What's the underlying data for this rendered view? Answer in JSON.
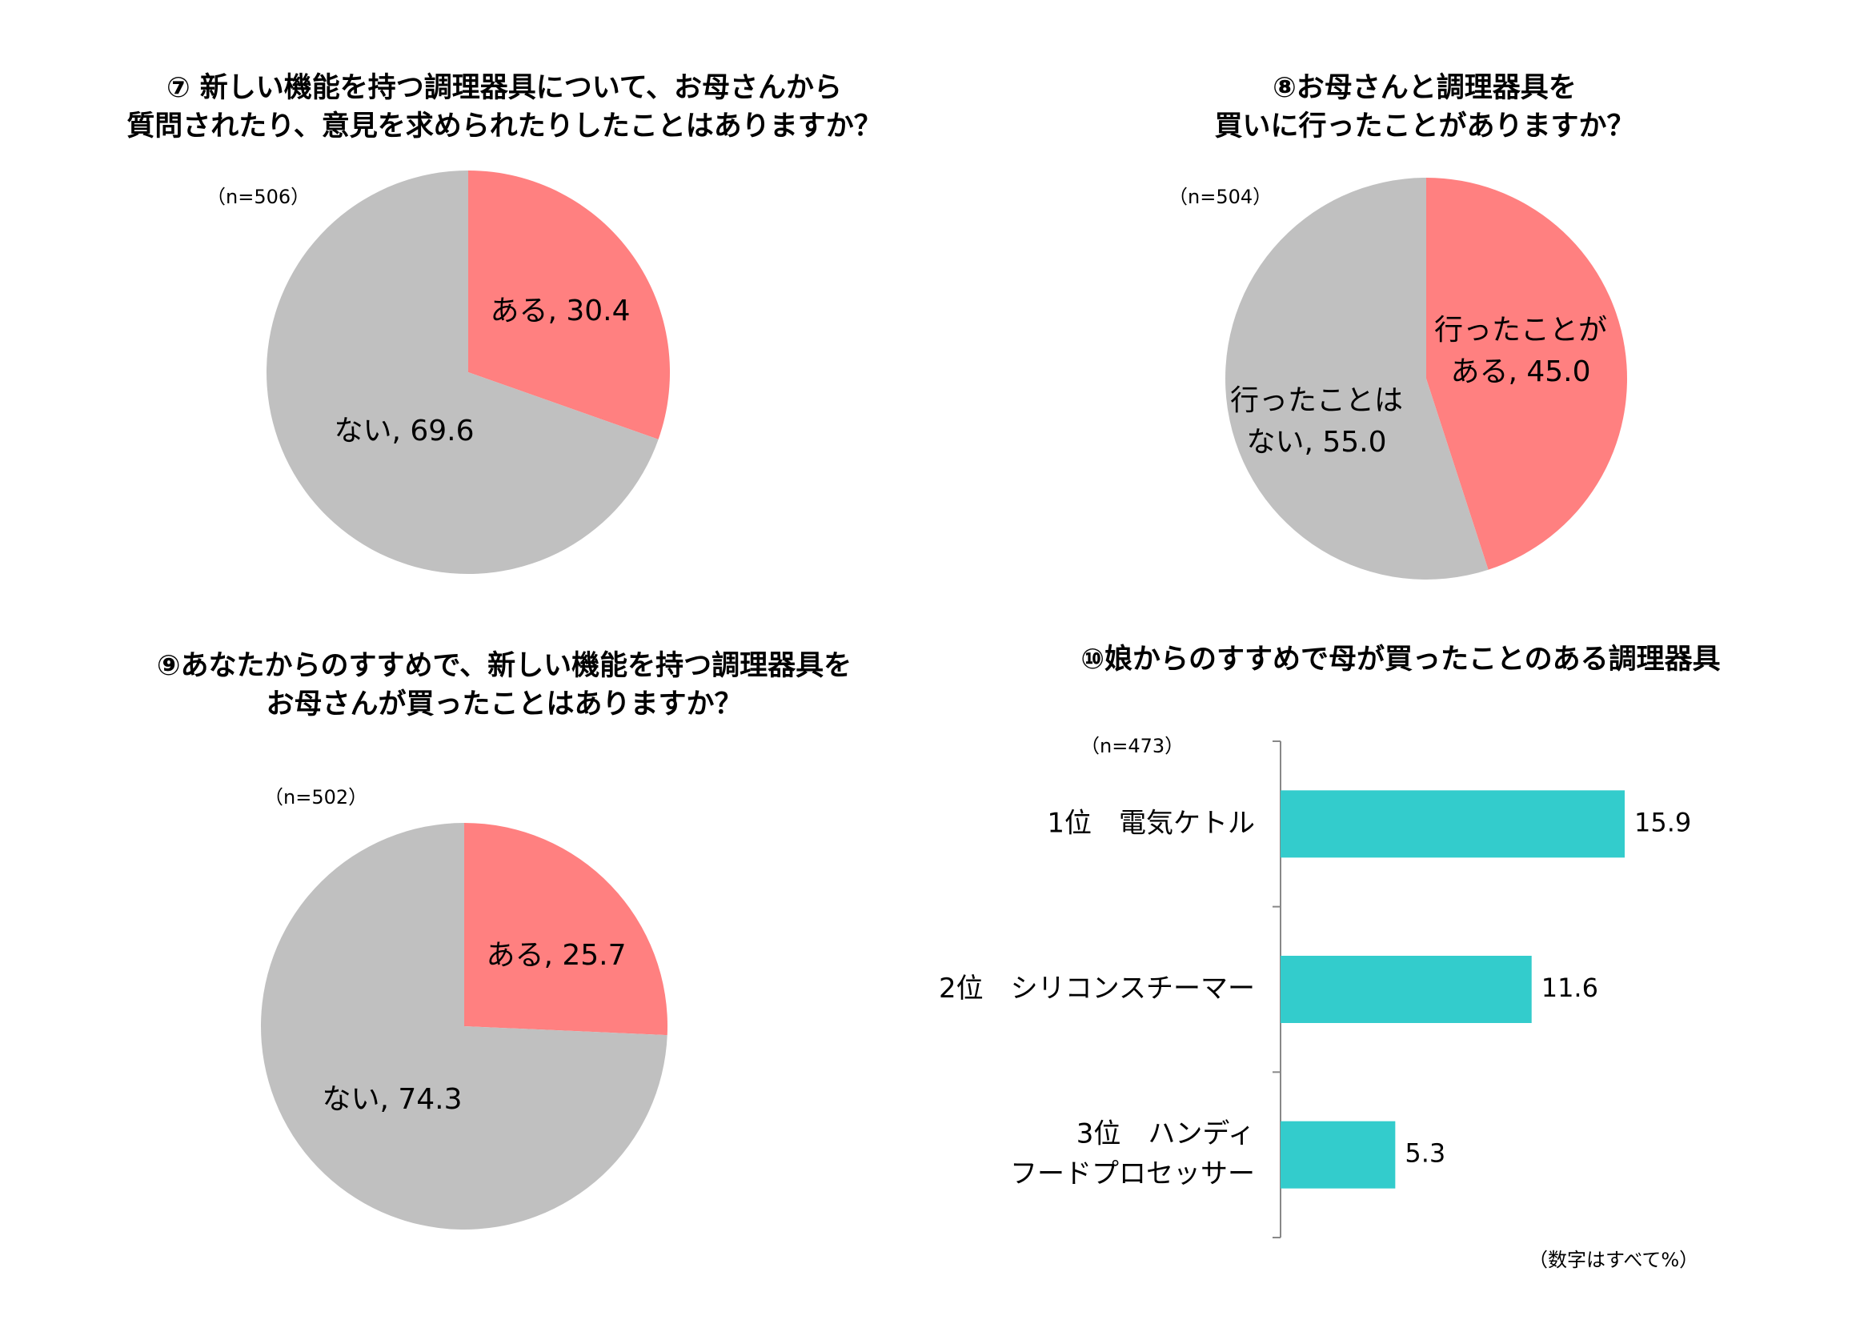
{
  "chart_data": [
    {
      "type": "pie",
      "title_lines": [
        "⑦ 新しい機能を持つ調理器具について、お母さんから",
        "質問されたり、意見を求められたりしたことはありますか？"
      ],
      "n_label": "（n=506）",
      "slices": [
        {
          "label_lines": [
            "ある, 30.4"
          ],
          "value": 30.4,
          "color": "#FF8080"
        },
        {
          "label_lines": [
            "ない, 69.6"
          ],
          "value": 69.6,
          "color": "#C0C0C0"
        }
      ]
    },
    {
      "type": "pie",
      "title_lines": [
        "⑧お母さんと調理器具を",
        "買いに行ったことがありますか？"
      ],
      "n_label": "（n=504）",
      "slices": [
        {
          "label_lines": [
            "行ったことが",
            "ある, 45.0"
          ],
          "value": 45.0,
          "color": "#FF8080"
        },
        {
          "label_lines": [
            "行ったことは",
            "ない, 55.0"
          ],
          "value": 55.0,
          "color": "#C0C0C0"
        }
      ]
    },
    {
      "type": "pie",
      "title_lines": [
        "⑨あなたからのすすめで、新しい機能を持つ調理器具を",
        "お母さんが買ったことはありますか？"
      ],
      "n_label": "（n=502）",
      "slices": [
        {
          "label_lines": [
            "ある, 25.7"
          ],
          "value": 25.7,
          "color": "#FF8080"
        },
        {
          "label_lines": [
            "ない, 74.3"
          ],
          "value": 74.3,
          "color": "#C0C0C0"
        }
      ]
    },
    {
      "type": "bar",
      "orientation": "horizontal",
      "title_lines": [
        "⑩娘からのすすめで母が買ったことのある調理器具"
      ],
      "n_label": "（n=473）",
      "categories": [
        {
          "label_lines": [
            "1位　電気ケトル"
          ]
        },
        {
          "label_lines": [
            "2位　シリコンスチーマー"
          ]
        },
        {
          "label_lines": [
            "3位　ハンディ",
            "フードプロセッサー"
          ]
        }
      ],
      "values": [
        15.9,
        11.6,
        5.3
      ],
      "value_labels": [
        "15.9",
        "11.6",
        "5.3"
      ],
      "color": "#33CCCC"
    }
  ],
  "footnote": "（数字はすべて%）"
}
